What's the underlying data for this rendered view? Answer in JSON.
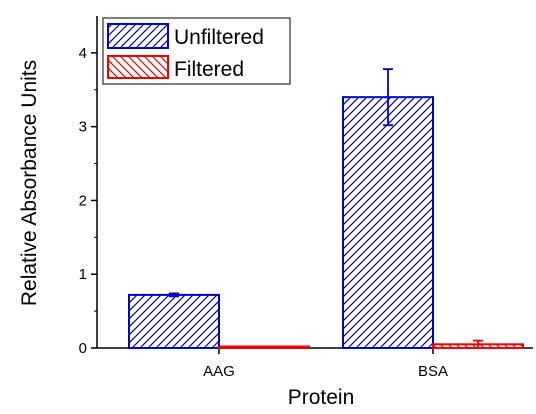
{
  "chart_data": {
    "type": "bar",
    "categories": [
      "AAG",
      "BSA"
    ],
    "series": [
      {
        "name": "Unfiltered",
        "values": [
          0.72,
          3.4
        ],
        "errors": [
          0.02,
          0.38
        ],
        "color": "#0000cc",
        "hatch": "forward"
      },
      {
        "name": "Filtered",
        "values": [
          0.02,
          0.05
        ],
        "errors": [
          0.0,
          0.05
        ],
        "color": "#ee0000",
        "hatch": "backward"
      }
    ],
    "xlabel": "Protein",
    "ylabel": "Relative Absorbance Units",
    "ylim": [
      0,
      4.5
    ],
    "yticks": [
      0,
      1,
      2,
      3,
      4
    ],
    "ytick_labels": [
      "0",
      "1",
      "2",
      "3",
      "4"
    ],
    "grid": false,
    "legend_position": "top-left"
  }
}
